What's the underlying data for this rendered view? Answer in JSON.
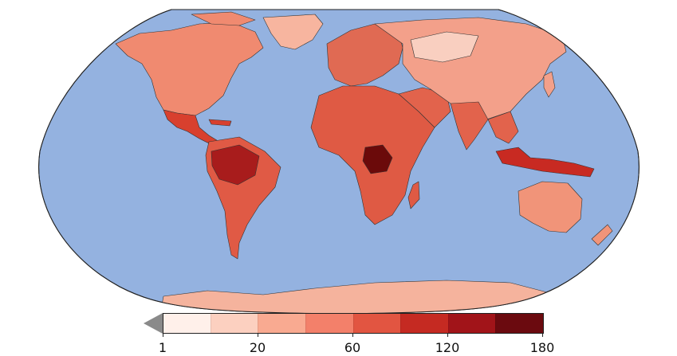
{
  "map": {
    "projection": "Robinson",
    "ocean_color": "#94b2e0",
    "land_edge_color": "#333333",
    "regions": [
      {
        "name": "north-america",
        "color": "#f08a70"
      },
      {
        "name": "greenland",
        "color": "#f7b59f"
      },
      {
        "name": "central-america",
        "color": "#d8402e"
      },
      {
        "name": "south-america",
        "color": "#e05a45"
      },
      {
        "name": "amazon",
        "color": "#a81c1c"
      },
      {
        "name": "europe",
        "color": "#e06a53"
      },
      {
        "name": "africa",
        "color": "#df5a44"
      },
      {
        "name": "congo-basin",
        "color": "#6b0a0a"
      },
      {
        "name": "asia",
        "color": "#f3a08a"
      },
      {
        "name": "siberia",
        "color": "#f9cfc0"
      },
      {
        "name": "south-asia",
        "color": "#e2634c"
      },
      {
        "name": "indonesia",
        "color": "#c82a22"
      },
      {
        "name": "australia",
        "color": "#f19479"
      },
      {
        "name": "antarctica",
        "color": "#f5b39d"
      }
    ]
  },
  "colorbar": {
    "colors": [
      "#fff0ea",
      "#fcd0c0",
      "#f9aa91",
      "#f3806a",
      "#e25541",
      "#c52a22",
      "#a11419",
      "#6b0a0f"
    ],
    "under_color": "#8a8a8a",
    "tick_labels": [
      "1",
      "20",
      "60",
      "120",
      "180"
    ],
    "tick_fractions": [
      0.0,
      0.25,
      0.5,
      0.75,
      1.0
    ]
  }
}
